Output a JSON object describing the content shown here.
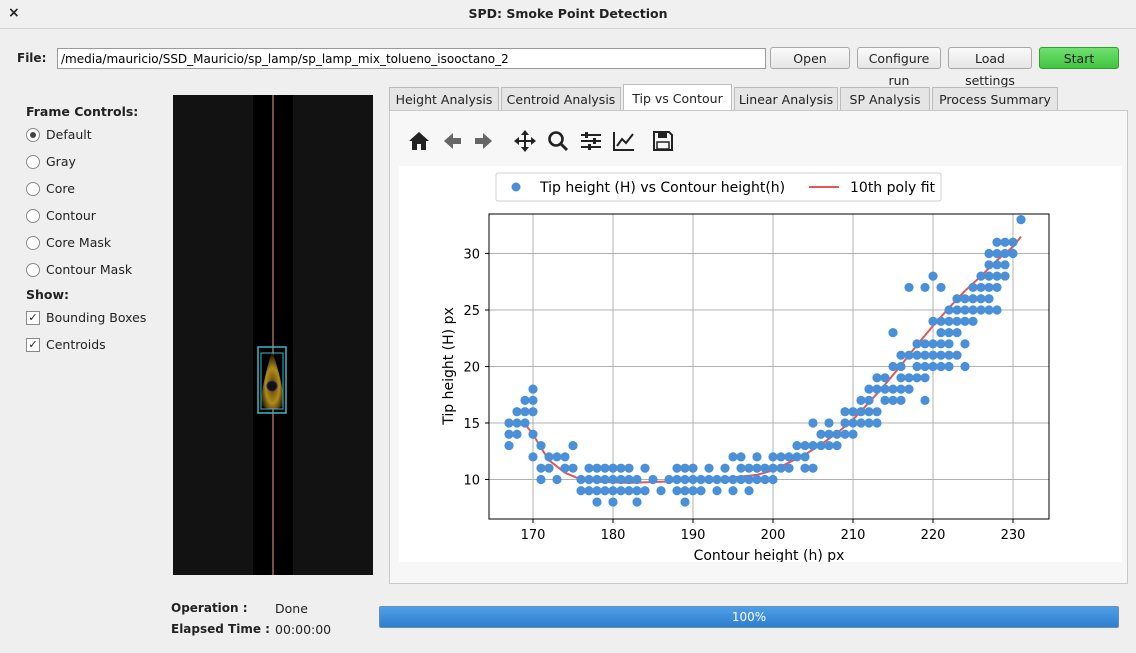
{
  "window": {
    "title": "SPD: Smoke Point Detection",
    "close_glyph": "×"
  },
  "file": {
    "label": "File:",
    "path": "/media/mauricio/SSD_Mauricio/sp_lamp/sp_lamp_mix_tolueno_isooctano_2"
  },
  "buttons": {
    "open": "Open",
    "configure": "Configure run",
    "load": "Load settings",
    "start": "Start"
  },
  "frame_controls": {
    "header": "Frame Controls:",
    "options": [
      "Default",
      "Gray",
      "Core",
      "Contour",
      "Core Mask",
      "Contour Mask"
    ],
    "selected": "Default"
  },
  "show": {
    "header": "Show:",
    "items": [
      {
        "label": "Bounding Boxes",
        "checked": true
      },
      {
        "label": "Centroids",
        "checked": true
      }
    ],
    "check_glyph": "✓"
  },
  "tabs": [
    "Height Analysis",
    "Centroid Analysis",
    "Tip vs Contour",
    "Linear Analysis",
    "SP Analysis",
    "Process Summary"
  ],
  "active_tab": "Tip vs Contour",
  "toolbar_icons": [
    "home-icon",
    "back-arrow-icon",
    "forward-arrow-icon",
    "pan-icon",
    "zoom-icon",
    "configure-subplots-icon",
    "edit-axis-icon",
    "save-icon"
  ],
  "status": {
    "operation_label": "Operation :",
    "operation_value": "Done",
    "elapsed_label": "Elapsed Time :",
    "elapsed_value": "00:00:00"
  },
  "progress": {
    "value": 100,
    "text": "100%"
  },
  "colors": {
    "scatter": "#4a90d9",
    "fit": "#e45756",
    "start_button": "#41c441",
    "progress": "#2d7fd0"
  },
  "chart_data": {
    "type": "scatter",
    "xlabel": "Contour height (h) px",
    "ylabel": "Tip height (H) px",
    "xlim": [
      164.5,
      234.5
    ],
    "ylim": [
      6.5,
      33.5
    ],
    "xticks": [
      170,
      180,
      190,
      200,
      210,
      220,
      230
    ],
    "yticks": [
      10,
      15,
      20,
      25,
      30
    ],
    "grid": true,
    "legend_position": "top",
    "series": [
      {
        "name": "Tip height (H) vs Contour height(h)",
        "kind": "scatter",
        "points": [
          [
            167,
            13
          ],
          [
            167,
            14
          ],
          [
            167,
            15
          ],
          [
            168,
            14
          ],
          [
            168,
            15
          ],
          [
            168,
            16
          ],
          [
            169,
            15
          ],
          [
            169,
            16
          ],
          [
            169,
            17
          ],
          [
            170,
            12
          ],
          [
            170,
            14
          ],
          [
            170,
            16
          ],
          [
            170,
            17
          ],
          [
            170,
            18
          ],
          [
            171,
            10
          ],
          [
            171,
            11
          ],
          [
            171,
            13
          ],
          [
            172,
            11
          ],
          [
            172,
            12
          ],
          [
            173,
            12
          ],
          [
            173,
            10
          ],
          [
            174,
            11
          ],
          [
            174,
            12
          ],
          [
            175,
            11
          ],
          [
            175,
            13
          ],
          [
            176,
            9
          ],
          [
            176,
            10
          ],
          [
            177,
            9
          ],
          [
            177,
            10
          ],
          [
            177,
            11
          ],
          [
            178,
            8
          ],
          [
            178,
            9
          ],
          [
            178,
            10
          ],
          [
            178,
            11
          ],
          [
            179,
            9
          ],
          [
            179,
            10
          ],
          [
            179,
            11
          ],
          [
            180,
            8
          ],
          [
            180,
            9
          ],
          [
            180,
            10
          ],
          [
            180,
            11
          ],
          [
            181,
            9
          ],
          [
            181,
            10
          ],
          [
            181,
            11
          ],
          [
            182,
            9
          ],
          [
            182,
            10
          ],
          [
            182,
            11
          ],
          [
            183,
            8
          ],
          [
            183,
            9
          ],
          [
            183,
            10
          ],
          [
            184,
            9
          ],
          [
            184,
            11
          ],
          [
            185,
            10
          ],
          [
            186,
            9
          ],
          [
            187,
            10
          ],
          [
            188,
            9
          ],
          [
            188,
            10
          ],
          [
            188,
            11
          ],
          [
            189,
            8
          ],
          [
            189,
            9
          ],
          [
            189,
            10
          ],
          [
            189,
            11
          ],
          [
            190,
            9
          ],
          [
            190,
            10
          ],
          [
            190,
            11
          ],
          [
            191,
            9
          ],
          [
            191,
            10
          ],
          [
            192,
            10
          ],
          [
            192,
            11
          ],
          [
            193,
            9
          ],
          [
            193,
            10
          ],
          [
            194,
            10
          ],
          [
            194,
            11
          ],
          [
            195,
            9
          ],
          [
            195,
            10
          ],
          [
            195,
            12
          ],
          [
            196,
            10
          ],
          [
            196,
            11
          ],
          [
            196,
            12
          ],
          [
            197,
            9
          ],
          [
            197,
            10
          ],
          [
            197,
            11
          ],
          [
            198,
            10
          ],
          [
            198,
            11
          ],
          [
            198,
            12
          ],
          [
            199,
            10
          ],
          [
            199,
            11
          ],
          [
            200,
            10
          ],
          [
            200,
            11
          ],
          [
            200,
            12
          ],
          [
            201,
            11
          ],
          [
            201,
            12
          ],
          [
            202,
            11
          ],
          [
            202,
            12
          ],
          [
            203,
            12
          ],
          [
            203,
            13
          ],
          [
            204,
            11
          ],
          [
            204,
            12
          ],
          [
            204,
            13
          ],
          [
            205,
            11
          ],
          [
            205,
            13
          ],
          [
            205,
            15
          ],
          [
            206,
            13
          ],
          [
            206,
            14
          ],
          [
            207,
            13
          ],
          [
            207,
            14
          ],
          [
            207,
            15
          ],
          [
            208,
            13
          ],
          [
            208,
            14
          ],
          [
            209,
            14
          ],
          [
            209,
            15
          ],
          [
            209,
            16
          ],
          [
            210,
            14
          ],
          [
            210,
            15
          ],
          [
            210,
            16
          ],
          [
            211,
            15
          ],
          [
            211,
            16
          ],
          [
            211,
            17
          ],
          [
            212,
            15
          ],
          [
            212,
            16
          ],
          [
            212,
            17
          ],
          [
            212,
            18
          ],
          [
            213,
            15
          ],
          [
            213,
            16
          ],
          [
            213,
            18
          ],
          [
            213,
            19
          ],
          [
            214,
            17
          ],
          [
            214,
            18
          ],
          [
            214,
            19
          ],
          [
            215,
            17
          ],
          [
            215,
            18
          ],
          [
            215,
            20
          ],
          [
            215,
            23
          ],
          [
            216,
            17
          ],
          [
            216,
            18
          ],
          [
            216,
            19
          ],
          [
            216,
            20
          ],
          [
            216,
            21
          ],
          [
            217,
            18
          ],
          [
            217,
            19
          ],
          [
            217,
            21
          ],
          [
            217,
            27
          ],
          [
            218,
            19
          ],
          [
            218,
            20
          ],
          [
            218,
            21
          ],
          [
            218,
            22
          ],
          [
            219,
            17
          ],
          [
            219,
            19
          ],
          [
            219,
            20
          ],
          [
            219,
            21
          ],
          [
            219,
            22
          ],
          [
            219,
            27
          ],
          [
            220,
            20
          ],
          [
            220,
            21
          ],
          [
            220,
            22
          ],
          [
            220,
            24
          ],
          [
            220,
            28
          ],
          [
            221,
            20
          ],
          [
            221,
            21
          ],
          [
            221,
            22
          ],
          [
            221,
            23
          ],
          [
            221,
            24
          ],
          [
            221,
            27
          ],
          [
            222,
            20
          ],
          [
            222,
            21
          ],
          [
            222,
            22
          ],
          [
            222,
            23
          ],
          [
            222,
            24
          ],
          [
            222,
            25
          ],
          [
            223,
            21
          ],
          [
            223,
            23
          ],
          [
            223,
            24
          ],
          [
            223,
            25
          ],
          [
            223,
            26
          ],
          [
            224,
            20
          ],
          [
            224,
            22
          ],
          [
            224,
            24
          ],
          [
            224,
            25
          ],
          [
            224,
            26
          ],
          [
            225,
            24
          ],
          [
            225,
            25
          ],
          [
            225,
            26
          ],
          [
            225,
            27
          ],
          [
            226,
            25
          ],
          [
            226,
            26
          ],
          [
            226,
            27
          ],
          [
            226,
            28
          ],
          [
            227,
            25
          ],
          [
            227,
            26
          ],
          [
            227,
            27
          ],
          [
            227,
            28
          ],
          [
            227,
            29
          ],
          [
            227,
            30
          ],
          [
            228,
            25
          ],
          [
            228,
            27
          ],
          [
            228,
            28
          ],
          [
            228,
            29
          ],
          [
            228,
            30
          ],
          [
            228,
            31
          ],
          [
            229,
            28
          ],
          [
            229,
            29
          ],
          [
            229,
            30
          ],
          [
            229,
            31
          ],
          [
            230,
            30
          ],
          [
            230,
            31
          ],
          [
            231,
            33
          ]
        ]
      },
      {
        "name": "10th poly fit",
        "kind": "line",
        "points": [
          [
            167,
            15
          ],
          [
            168,
            15.2
          ],
          [
            169,
            14.9
          ],
          [
            170,
            14
          ],
          [
            171,
            12.8
          ],
          [
            172,
            11.7
          ],
          [
            174,
            10.6
          ],
          [
            176,
            10
          ],
          [
            178,
            9.8
          ],
          [
            182,
            9.7
          ],
          [
            186,
            9.8
          ],
          [
            190,
            9.9
          ],
          [
            194,
            10.1
          ],
          [
            198,
            10.4
          ],
          [
            200,
            10.8
          ],
          [
            202,
            11.5
          ],
          [
            204,
            12.2
          ],
          [
            206,
            13.1
          ],
          [
            208,
            14.1
          ],
          [
            210,
            15.3
          ],
          [
            212,
            16.8
          ],
          [
            214,
            18.4
          ],
          [
            216,
            20.1
          ],
          [
            218,
            21.9
          ],
          [
            220,
            23.6
          ],
          [
            222,
            25.2
          ],
          [
            224,
            26.7
          ],
          [
            226,
            28
          ],
          [
            228,
            29.4
          ],
          [
            230,
            30.6
          ],
          [
            231,
            31.5
          ]
        ]
      }
    ]
  }
}
